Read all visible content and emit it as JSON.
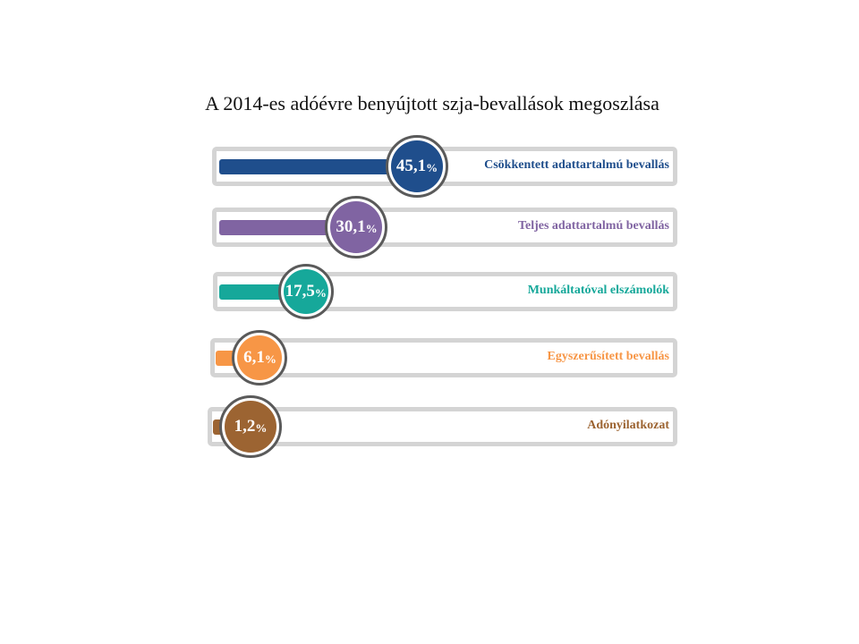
{
  "chart_data": {
    "type": "bar",
    "title": "A 2014-es adóévre benyújtott szja-bevallások megoszlása",
    "unit": "%",
    "categories": [
      "Csökkentett adattartalmú bevallás",
      "Teljes adattartalmú  bevallás",
      "Munkáltatóval elszámolók",
      "Egyszerűsített bevallás",
      "Adónyilatkozat"
    ],
    "values": [
      45.1,
      30.1,
      17.5,
      6.1,
      1.2
    ],
    "value_labels": [
      "45,1",
      "30,1",
      "17,5",
      "6,1",
      "1,2"
    ],
    "colors": [
      "#1f4e8c",
      "#8064a2",
      "#16a89a",
      "#f79646",
      "#9c6432"
    ],
    "xlim": [
      0,
      100
    ]
  }
}
